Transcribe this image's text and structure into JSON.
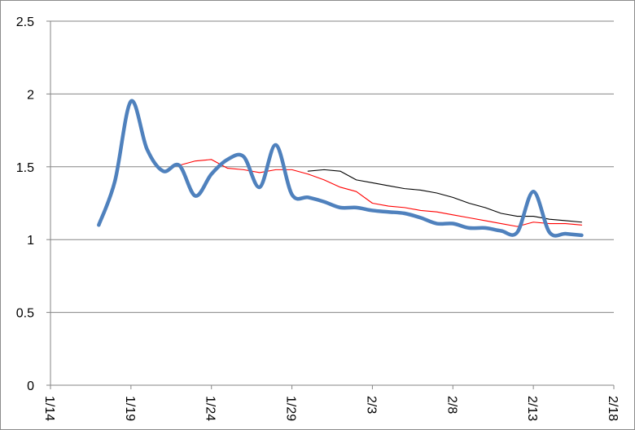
{
  "chart_data": {
    "type": "line",
    "title": "",
    "xlabel": "",
    "ylabel": "",
    "x_axis": {
      "min": "1/14",
      "max": "2/18",
      "tick_labels": [
        "1/14",
        "1/19",
        "1/24",
        "1/29",
        "2/3",
        "2/8",
        "2/13",
        "2/18"
      ]
    },
    "ylim": [
      0,
      2.5
    ],
    "y_tick_labels": [
      "0",
      "0.5",
      "1",
      "1.5",
      "2",
      "2.5"
    ],
    "grid": "horizontal",
    "legend": "none",
    "series": [
      {
        "color": "#4f81bd",
        "style": "thick-smooth",
        "points": [
          [
            "1/17",
            1.1
          ],
          [
            "1/18",
            1.4
          ],
          [
            "1/19",
            1.95
          ],
          [
            "1/20",
            1.62
          ],
          [
            "1/21",
            1.47
          ],
          [
            "1/22",
            1.51
          ],
          [
            "1/23",
            1.3
          ],
          [
            "1/24",
            1.45
          ],
          [
            "1/25",
            1.55
          ],
          [
            "1/26",
            1.57
          ],
          [
            "1/27",
            1.36
          ],
          [
            "1/28",
            1.65
          ],
          [
            "1/29",
            1.31
          ],
          [
            "1/30",
            1.29
          ],
          [
            "1/31",
            1.26
          ],
          [
            "2/1",
            1.22
          ],
          [
            "2/2",
            1.22
          ],
          [
            "2/3",
            1.2
          ],
          [
            "2/4",
            1.19
          ],
          [
            "2/5",
            1.18
          ],
          [
            "2/6",
            1.15
          ],
          [
            "2/7",
            1.11
          ],
          [
            "2/8",
            1.11
          ],
          [
            "2/9",
            1.08
          ],
          [
            "2/10",
            1.08
          ],
          [
            "2/11",
            1.06
          ],
          [
            "2/12",
            1.05
          ],
          [
            "2/13",
            1.33
          ],
          [
            "2/14",
            1.05
          ],
          [
            "2/15",
            1.04
          ],
          [
            "2/16",
            1.03
          ]
        ]
      },
      {
        "color": "#ff0000",
        "style": "thin",
        "points": [
          [
            "1/22",
            1.51
          ],
          [
            "1/23",
            1.54
          ],
          [
            "1/24",
            1.55
          ],
          [
            "1/25",
            1.49
          ],
          [
            "1/26",
            1.48
          ],
          [
            "1/27",
            1.46
          ],
          [
            "1/28",
            1.48
          ],
          [
            "1/29",
            1.48
          ],
          [
            "1/30",
            1.45
          ],
          [
            "1/31",
            1.41
          ],
          [
            "2/1",
            1.36
          ],
          [
            "2/2",
            1.33
          ],
          [
            "2/3",
            1.25
          ],
          [
            "2/4",
            1.23
          ],
          [
            "2/5",
            1.22
          ],
          [
            "2/6",
            1.2
          ],
          [
            "2/7",
            1.19
          ],
          [
            "2/8",
            1.17
          ],
          [
            "2/9",
            1.15
          ],
          [
            "2/10",
            1.13
          ],
          [
            "2/11",
            1.11
          ],
          [
            "2/12",
            1.09
          ],
          [
            "2/13",
            1.12
          ],
          [
            "2/14",
            1.11
          ],
          [
            "2/15",
            1.11
          ],
          [
            "2/16",
            1.1
          ]
        ]
      },
      {
        "color": "#000000",
        "style": "thin",
        "points": [
          [
            "1/30",
            1.47
          ],
          [
            "1/31",
            1.48
          ],
          [
            "2/1",
            1.47
          ],
          [
            "2/2",
            1.41
          ],
          [
            "2/3",
            1.39
          ],
          [
            "2/4",
            1.37
          ],
          [
            "2/5",
            1.35
          ],
          [
            "2/6",
            1.34
          ],
          [
            "2/7",
            1.32
          ],
          [
            "2/8",
            1.29
          ],
          [
            "2/9",
            1.25
          ],
          [
            "2/10",
            1.22
          ],
          [
            "2/11",
            1.18
          ],
          [
            "2/12",
            1.16
          ],
          [
            "2/13",
            1.16
          ],
          [
            "2/14",
            1.14
          ],
          [
            "2/15",
            1.13
          ],
          [
            "2/16",
            1.12
          ]
        ]
      }
    ]
  }
}
